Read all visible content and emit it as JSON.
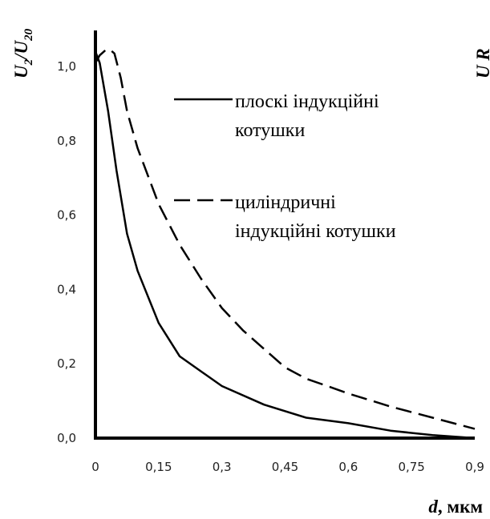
{
  "chart_data": {
    "type": "line",
    "xlabel_var": "d",
    "xlabel_unit": ", мкм",
    "ylabel_num": "U",
    "ylabel_num_sub": "2",
    "ylabel_den": "U",
    "ylabel_den_sub": "20",
    "xlim": [
      0,
      0.9
    ],
    "ylim": [
      0,
      1.0
    ],
    "x_ticks": [
      "0",
      "0,15",
      "0,3",
      "0,45",
      "0,6",
      "0,75",
      "0,9"
    ],
    "y_ticks": [
      "0,0",
      "0,2",
      "0,4",
      "0,6",
      "0,8",
      "1,0"
    ],
    "grid": false,
    "legend_position": "right",
    "series": [
      {
        "name_lines": [
          "плоскі індукційні",
          "котушки"
        ],
        "style": "solid",
        "color": "#000000",
        "points": [
          [
            0,
            1.04
          ],
          [
            0.01,
            1.01
          ],
          [
            0.03,
            0.88
          ],
          [
            0.05,
            0.72
          ],
          [
            0.075,
            0.55
          ],
          [
            0.1,
            0.45
          ],
          [
            0.15,
            0.31
          ],
          [
            0.2,
            0.22
          ],
          [
            0.25,
            0.18
          ],
          [
            0.3,
            0.14
          ],
          [
            0.4,
            0.09
          ],
          [
            0.5,
            0.055
          ],
          [
            0.6,
            0.04
          ],
          [
            0.7,
            0.02
          ],
          [
            0.8,
            0.008
          ],
          [
            0.9,
            0.0
          ]
        ]
      },
      {
        "name_lines": [
          "циліндричні",
          "індукційні котушки"
        ],
        "style": "dashed",
        "color": "#000000",
        "points": [
          [
            0,
            1.01
          ],
          [
            0.01,
            1.03
          ],
          [
            0.025,
            1.045
          ],
          [
            0.035,
            1.045
          ],
          [
            0.045,
            1.035
          ],
          [
            0.06,
            0.97
          ],
          [
            0.075,
            0.88
          ],
          [
            0.1,
            0.78
          ],
          [
            0.15,
            0.63
          ],
          [
            0.2,
            0.52
          ],
          [
            0.25,
            0.43
          ],
          [
            0.3,
            0.35
          ],
          [
            0.35,
            0.29
          ],
          [
            0.4,
            0.24
          ],
          [
            0.45,
            0.19
          ],
          [
            0.5,
            0.16
          ],
          [
            0.55,
            0.14
          ],
          [
            0.6,
            0.12
          ],
          [
            0.7,
            0.085
          ],
          [
            0.8,
            0.055
          ],
          [
            0.9,
            0.025
          ]
        ]
      }
    ],
    "cut_off_text": "U  R"
  }
}
